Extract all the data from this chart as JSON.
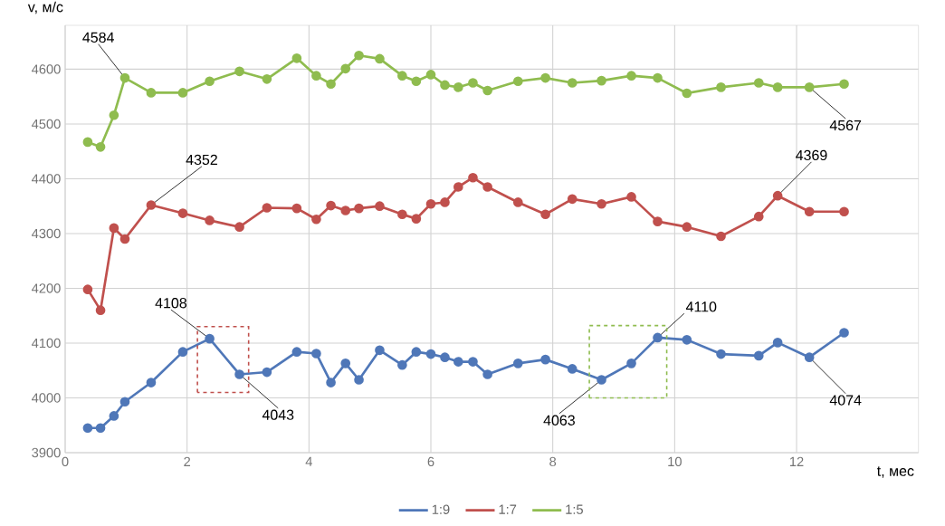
{
  "chart_data": {
    "type": "line",
    "xlabel": "t, мес",
    "ylabel": "v, м/с",
    "x": [
      0.37,
      0.58,
      0.8,
      0.98,
      1.41,
      1.93,
      2.37,
      2.86,
      3.31,
      3.8,
      4.12,
      4.36,
      4.6,
      4.82,
      5.16,
      5.53,
      5.76,
      6.0,
      6.23,
      6.45,
      6.69,
      6.93,
      7.43,
      7.88,
      8.32,
      8.8,
      9.29,
      9.72,
      10.2,
      10.76,
      11.38,
      11.69,
      12.21,
      12.78
    ],
    "series": [
      {
        "name": "1:9",
        "color": "#4f77b8",
        "values": [
          3945,
          3945,
          3967,
          3993,
          4028,
          4084,
          4108,
          4043,
          4047,
          4084,
          4081,
          4028,
          4063,
          4033,
          4087,
          4060,
          4084,
          4080,
          4074,
          4066,
          4066,
          4043,
          4063,
          4070,
          4053,
          4033,
          4063,
          4110,
          4106,
          4080,
          4077,
          4101,
          4074,
          4119
        ]
      },
      {
        "name": "1:7",
        "color": "#c0504d",
        "values": [
          4198,
          4160,
          4310,
          4290,
          4352,
          4337,
          4324,
          4312,
          4347,
          4346,
          4326,
          4351,
          4342,
          4346,
          4350,
          4335,
          4327,
          4354,
          4357,
          4385,
          4402,
          4385,
          4357,
          4335,
          4363,
          4354,
          4367,
          4322,
          4312,
          4295,
          4331,
          4369,
          4340,
          4340
        ]
      },
      {
        "name": "1:5",
        "color": "#8fbc4f",
        "values": [
          4467,
          4458,
          4516,
          4584,
          4557,
          4557,
          4578,
          4596,
          4582,
          4620,
          4588,
          4573,
          4601,
          4625,
          4619,
          4588,
          4578,
          4590,
          4571,
          4567,
          4575,
          4561,
          4578,
          4584,
          4575,
          4579,
          4588,
          4584,
          4556,
          4567,
          4575,
          4567,
          4567,
          4573
        ]
      }
    ],
    "xlim": [
      0,
      14
    ],
    "ylim": [
      3900,
      4680
    ],
    "xticks": [
      0,
      2,
      4,
      6,
      8,
      10,
      12
    ],
    "yticks": [
      3900,
      4000,
      4100,
      4200,
      4300,
      4400,
      4500,
      4600
    ],
    "grid": true,
    "legend": "bottom",
    "marker": "circle",
    "annotations": [
      {
        "text": "4584",
        "x": 0.98,
        "y": 4584
      },
      {
        "text": "4352",
        "x": 1.41,
        "y": 4352
      },
      {
        "text": "4108",
        "x": 2.37,
        "y": 4108
      },
      {
        "text": "4043",
        "x": 2.86,
        "y": 4043
      },
      {
        "text": "4063",
        "x": 8.8,
        "y": 4033
      },
      {
        "text": "4110",
        "x": 9.72,
        "y": 4110
      },
      {
        "text": "4369",
        "x": 11.69,
        "y": 4369
      },
      {
        "text": "4567",
        "x": 12.21,
        "y": 4567
      },
      {
        "text": "4074",
        "x": 12.21,
        "y": 4074
      }
    ]
  }
}
